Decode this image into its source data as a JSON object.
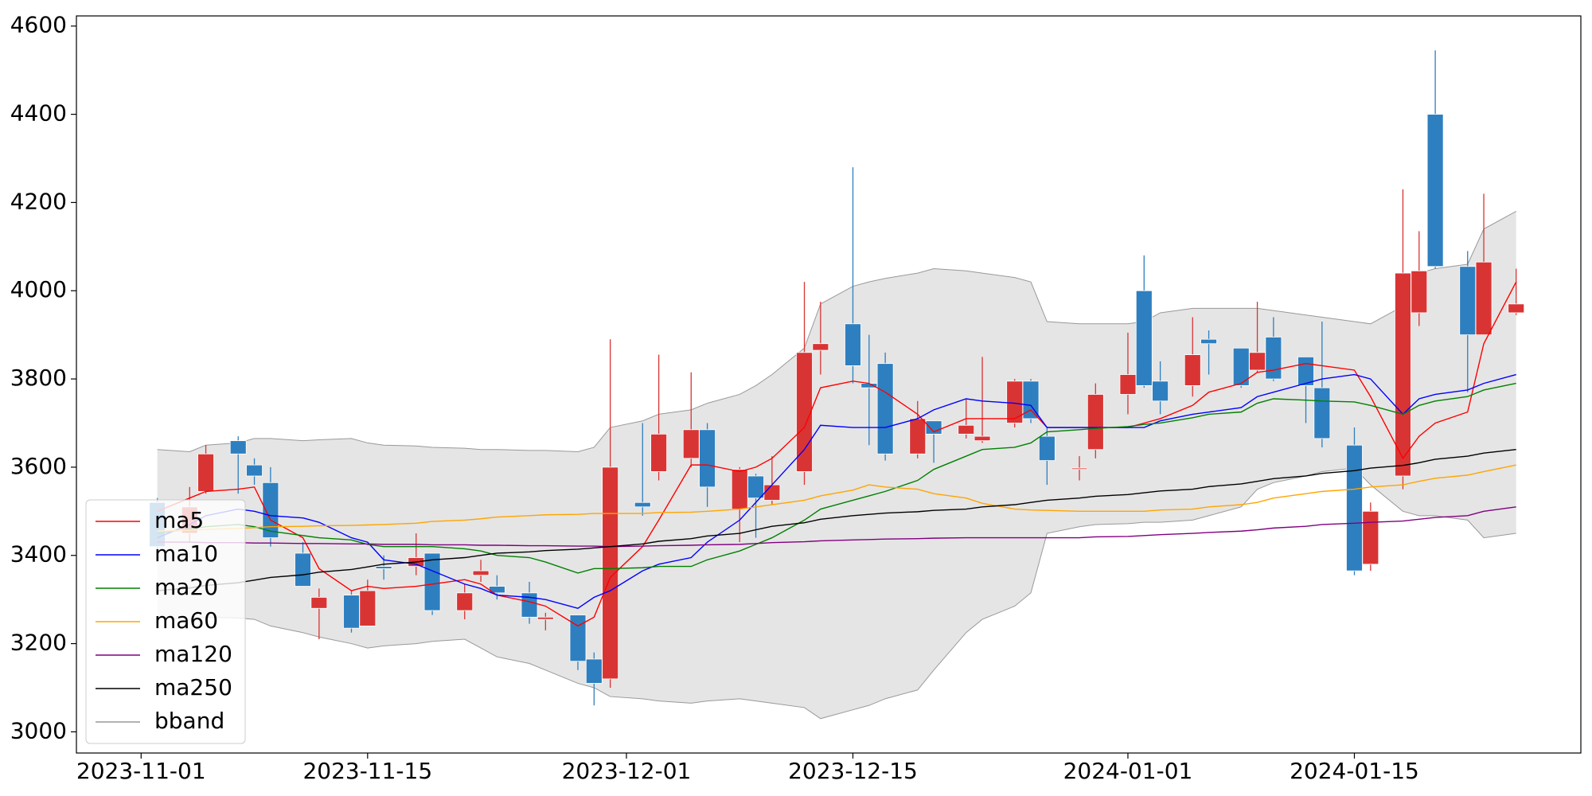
{
  "chart_data": {
    "type": "candlestick",
    "x": [
      "2023-11-02",
      "2023-11-04",
      "2023-11-05",
      "2023-11-07",
      "2023-11-08",
      "2023-11-09",
      "2023-11-11",
      "2023-11-12",
      "2023-11-14",
      "2023-11-15",
      "2023-11-16",
      "2023-11-18",
      "2023-11-19",
      "2023-11-21",
      "2023-11-22",
      "2023-11-23",
      "2023-11-25",
      "2023-11-26",
      "2023-11-28",
      "2023-11-29",
      "2023-11-30",
      "2023-12-02",
      "2023-12-03",
      "2023-12-05",
      "2023-12-06",
      "2023-12-08",
      "2023-12-09",
      "2023-12-10",
      "2023-12-12",
      "2023-12-13",
      "2023-12-15",
      "2023-12-16",
      "2023-12-17",
      "2023-12-19",
      "2023-12-20",
      "2023-12-22",
      "2023-12-23",
      "2023-12-25",
      "2023-12-26",
      "2023-12-27",
      "2023-12-29",
      "2023-12-30",
      "2024-01-01",
      "2024-01-02",
      "2024-01-03",
      "2024-01-05",
      "2024-01-06",
      "2024-01-08",
      "2024-01-09",
      "2024-01-10",
      "2024-01-12",
      "2024-01-13",
      "2024-01-15",
      "2024-01-16",
      "2024-01-18",
      "2024-01-19",
      "2024-01-20",
      "2024-01-22",
      "2024-01-23",
      "2024-01-25"
    ],
    "open": [
      3520,
      3450,
      3545,
      3660,
      3605,
      3565,
      3405,
      3280,
      3310,
      3240,
      3375,
      3375,
      3405,
      3275,
      3355,
      3330,
      3315,
      3255,
      3265,
      3165,
      3120,
      3520,
      3590,
      3620,
      3685,
      3505,
      3580,
      3525,
      3590,
      3865,
      3925,
      3790,
      3835,
      3630,
      3705,
      3675,
      3660,
      3700,
      3795,
      3670,
      3595,
      3640,
      3765,
      4000,
      3795,
      3785,
      3890,
      3870,
      3820,
      3895,
      3850,
      3780,
      3650,
      3380,
      3580,
      3950,
      4400,
      4055,
      3900,
      3950
    ],
    "high": [
      3530,
      3555,
      3650,
      3670,
      3620,
      3600,
      3430,
      3325,
      3320,
      3345,
      3400,
      3450,
      3405,
      3335,
      3390,
      3355,
      3340,
      3270,
      3265,
      3180,
      3890,
      3700,
      3855,
      3815,
      3700,
      3600,
      3585,
      3625,
      4020,
      3975,
      4280,
      3900,
      3860,
      3750,
      3705,
      3755,
      3850,
      3800,
      3800,
      3690,
      3625,
      3790,
      3905,
      4080,
      3840,
      3940,
      3910,
      3870,
      3975,
      3940,
      3850,
      3930,
      3690,
      3520,
      4230,
      4135,
      4545,
      4090,
      4220,
      4050
    ],
    "low": [
      3410,
      3430,
      3540,
      3540,
      3560,
      3420,
      3330,
      3210,
      3225,
      3240,
      3345,
      3355,
      3265,
      3255,
      3340,
      3300,
      3245,
      3230,
      3140,
      3060,
      3100,
      3490,
      3570,
      3600,
      3510,
      3430,
      3440,
      3515,
      3560,
      3810,
      3790,
      3650,
      3615,
      3620,
      3610,
      3665,
      3655,
      3690,
      3700,
      3560,
      3570,
      3620,
      3720,
      3780,
      3720,
      3760,
      3810,
      3780,
      3815,
      3795,
      3700,
      3645,
      3355,
      3365,
      3550,
      3920,
      4050,
      3770,
      3900,
      3945
    ],
    "close": [
      3420,
      3510,
      3630,
      3630,
      3580,
      3440,
      3330,
      3305,
      3235,
      3320,
      3370,
      3395,
      3275,
      3315,
      3365,
      3315,
      3260,
      3260,
      3160,
      3110,
      3600,
      3510,
      3675,
      3685,
      3555,
      3595,
      3530,
      3560,
      3860,
      3880,
      3830,
      3780,
      3630,
      3710,
      3675,
      3695,
      3670,
      3795,
      3710,
      3615,
      3598,
      3765,
      3810,
      3785,
      3750,
      3855,
      3880,
      3785,
      3860,
      3800,
      3785,
      3665,
      3365,
      3500,
      4040,
      4045,
      4055,
      3900,
      4065,
      3970
    ],
    "up_color": "#d93434",
    "down_color": "#2e7fbf",
    "series": [
      {
        "name": "ma5",
        "color": "#ff0000",
        "values": [
          3500,
          3530,
          3545,
          3550,
          3555,
          3480,
          3440,
          3370,
          3320,
          3330,
          3325,
          3330,
          3335,
          3345,
          3335,
          3310,
          3295,
          3285,
          3240,
          3260,
          3350,
          3420,
          3480,
          3605,
          3605,
          3590,
          3600,
          3620,
          3690,
          3780,
          3795,
          3790,
          3770,
          3720,
          3680,
          3710,
          3710,
          3710,
          3730,
          3690,
          3690,
          3690,
          3690,
          3700,
          3710,
          3740,
          3770,
          3790,
          3815,
          3820,
          3835,
          3830,
          3820,
          3760,
          3620,
          3670,
          3700,
          3725,
          3880,
          4020
        ]
      },
      {
        "name": "ma10",
        "color": "#0000ff",
        "values": [
          3440,
          3470,
          3490,
          3505,
          3500,
          3490,
          3485,
          3475,
          3440,
          3430,
          3390,
          3380,
          3365,
          3335,
          3325,
          3310,
          3305,
          3300,
          3280,
          3305,
          3320,
          3365,
          3380,
          3395,
          3430,
          3480,
          3520,
          3560,
          3640,
          3695,
          3690,
          3690,
          3690,
          3710,
          3730,
          3755,
          3750,
          3745,
          3740,
          3690,
          3690,
          3690,
          3690,
          3690,
          3705,
          3720,
          3725,
          3735,
          3760,
          3770,
          3790,
          3800,
          3810,
          3800,
          3720,
          3755,
          3765,
          3775,
          3790,
          3810
        ]
      },
      {
        "name": "ma20",
        "color": "#008000",
        "values": [
          3450,
          3460,
          3465,
          3470,
          3465,
          3455,
          3445,
          3440,
          3435,
          3425,
          3420,
          3420,
          3420,
          3415,
          3410,
          3400,
          3395,
          3385,
          3360,
          3370,
          3370,
          3372,
          3375,
          3375,
          3390,
          3410,
          3425,
          3440,
          3480,
          3505,
          3525,
          3535,
          3545,
          3570,
          3595,
          3625,
          3640,
          3645,
          3655,
          3680,
          3685,
          3688,
          3692,
          3697,
          3700,
          3712,
          3720,
          3725,
          3745,
          3755,
          3752,
          3750,
          3748,
          3740,
          3720,
          3740,
          3750,
          3760,
          3775,
          3790
        ]
      },
      {
        "name": "ma60",
        "color": "#ffa500",
        "values": [
          3455,
          3457,
          3459,
          3461,
          3463,
          3465,
          3466,
          3467,
          3468,
          3469,
          3470,
          3473,
          3477,
          3480,
          3483,
          3487,
          3490,
          3492,
          3493,
          3495,
          3495,
          3495,
          3497,
          3498,
          3500,
          3505,
          3510,
          3515,
          3525,
          3535,
          3548,
          3560,
          3555,
          3550,
          3540,
          3530,
          3518,
          3505,
          3503,
          3502,
          3500,
          3500,
          3500,
          3500,
          3503,
          3505,
          3510,
          3515,
          3520,
          3530,
          3540,
          3545,
          3550,
          3555,
          3560,
          3568,
          3575,
          3582,
          3590,
          3605
        ]
      },
      {
        "name": "ma120",
        "color": "#800080",
        "values": [
          3430,
          3430,
          3429,
          3429,
          3428,
          3428,
          3427,
          3427,
          3426,
          3426,
          3425,
          3425,
          3424,
          3424,
          3423,
          3423,
          3422,
          3422,
          3421,
          3421,
          3420,
          3421,
          3422,
          3423,
          3424,
          3425,
          3427,
          3429,
          3431,
          3433,
          3435,
          3436,
          3437,
          3438,
          3439,
          3440,
          3440,
          3440,
          3440,
          3440,
          3440,
          3442,
          3443,
          3445,
          3447,
          3450,
          3452,
          3455,
          3458,
          3462,
          3466,
          3470,
          3473,
          3475,
          3478,
          3482,
          3486,
          3490,
          3500,
          3510
        ]
      },
      {
        "name": "ma250",
        "color": "#000000",
        "values": [
          3320,
          3326,
          3332,
          3338,
          3344,
          3350,
          3356,
          3362,
          3368,
          3374,
          3380,
          3385,
          3390,
          3395,
          3400,
          3405,
          3408,
          3411,
          3414,
          3417,
          3420,
          3426,
          3432,
          3438,
          3444,
          3450,
          3458,
          3466,
          3474,
          3482,
          3490,
          3493,
          3496,
          3499,
          3502,
          3505,
          3510,
          3515,
          3520,
          3525,
          3530,
          3534,
          3538,
          3542,
          3546,
          3550,
          3556,
          3562,
          3568,
          3574,
          3580,
          3586,
          3592,
          3598,
          3604,
          3610,
          3618,
          3625,
          3632,
          3640
        ]
      }
    ],
    "bband": {
      "name": "bband",
      "color": "#999999",
      "fill": "#e5e5e5",
      "upper": [
        3640,
        3635,
        3650,
        3655,
        3665,
        3665,
        3660,
        3662,
        3665,
        3655,
        3650,
        3648,
        3645,
        3643,
        3640,
        3640,
        3638,
        3638,
        3635,
        3645,
        3690,
        3705,
        3720,
        3730,
        3745,
        3765,
        3785,
        3810,
        3870,
        3970,
        4010,
        4020,
        4028,
        4040,
        4050,
        4045,
        4040,
        4030,
        4020,
        3930,
        3925,
        3925,
        3925,
        3930,
        3950,
        3960,
        3960,
        3960,
        3960,
        3955,
        3945,
        3940,
        3930,
        3925,
        3965,
        4040,
        4050,
        4060,
        4140,
        4180
      ],
      "lower": [
        3260,
        3255,
        3260,
        3258,
        3255,
        3240,
        3225,
        3215,
        3200,
        3190,
        3195,
        3200,
        3205,
        3210,
        3190,
        3170,
        3155,
        3140,
        3110,
        3100,
        3080,
        3075,
        3070,
        3065,
        3070,
        3075,
        3070,
        3065,
        3055,
        3030,
        3050,
        3060,
        3075,
        3095,
        3140,
        3225,
        3255,
        3285,
        3315,
        3450,
        3465,
        3470,
        3472,
        3475,
        3475,
        3480,
        3490,
        3510,
        3550,
        3565,
        3580,
        3590,
        3598,
        3560,
        3500,
        3490,
        3490,
        3480,
        3440,
        3450
      ]
    },
    "xlim": [
      "2023-10-28",
      "2024-01-29"
    ],
    "xticks": [
      "2023-11-01",
      "2023-11-15",
      "2023-12-01",
      "2023-12-15",
      "2024-01-01",
      "2024-01-15"
    ],
    "ylim": [
      2952,
      4623
    ],
    "yticks": [
      3000,
      3200,
      3400,
      3600,
      3800,
      4000,
      4200,
      4400,
      4600
    ],
    "legend": "lower left"
  }
}
